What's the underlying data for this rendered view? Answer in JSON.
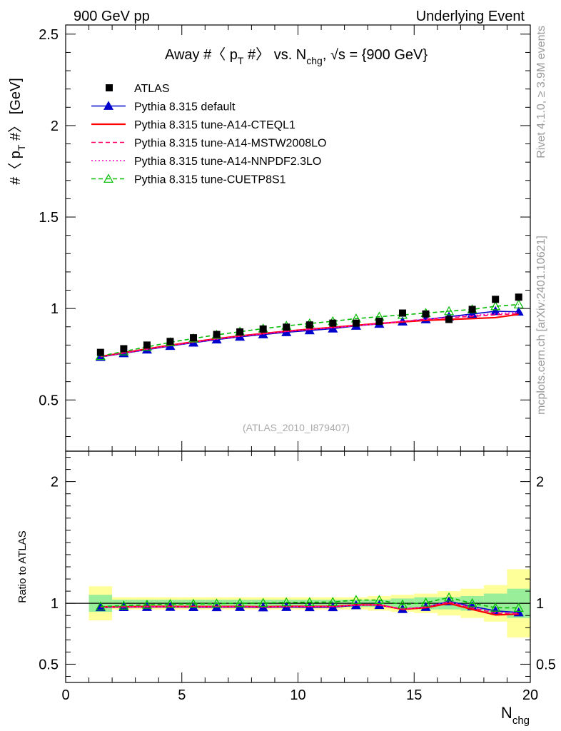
{
  "header": {
    "left": "900 GeV pp",
    "right": "Underlying Event"
  },
  "side_labels": {
    "rivet": "Rivet 4.1.0, ≥ 3.9M events",
    "mcplots": "mcplots.cern.ch [arXiv:2401.10621]"
  },
  "chart_data": {
    "type": "line",
    "title": "Away #〈 p_T #〉 vs. N_chg, √s = {900 GeV}",
    "watermark": "(ATLAS_2010_I879407)",
    "xlabel": "N_chg",
    "ylabel": "#〈 p_T #〉 [GeV]",
    "ratio_ylabel": "Ratio to ATLAS",
    "xlim": [
      0,
      20
    ],
    "ylim": [
      0.22,
      2.55
    ],
    "ratio_ylim": [
      0.35,
      2.25
    ],
    "x_ticks": [
      "0",
      "5",
      "10",
      "15",
      "20"
    ],
    "y_ticks": [
      "0.5",
      "1",
      "1.5",
      "2",
      "2.5"
    ],
    "ratio_ticks": [
      "0.5",
      "1",
      "2"
    ],
    "x": [
      1.5,
      2.5,
      3.5,
      4.5,
      5.5,
      6.5,
      7.5,
      8.5,
      9.5,
      10.5,
      11.5,
      12.5,
      13.5,
      14.5,
      15.5,
      16.5,
      17.5,
      18.5,
      19.5
    ],
    "data": {
      "name": "ATLAS",
      "values": [
        0.76,
        0.78,
        0.8,
        0.82,
        0.84,
        0.858,
        0.872,
        0.888,
        0.898,
        0.91,
        0.92,
        0.92,
        0.93,
        0.975,
        0.97,
        0.94,
        0.995,
        1.05,
        1.062
      ],
      "band_inner": [
        0.07,
        0.03,
        0.03,
        0.03,
        0.03,
        0.03,
        0.03,
        0.03,
        0.03,
        0.03,
        0.03,
        0.03,
        0.03,
        0.04,
        0.05,
        0.05,
        0.06,
        0.08,
        0.12
      ],
      "band_outer": [
        0.14,
        0.05,
        0.05,
        0.05,
        0.05,
        0.05,
        0.05,
        0.05,
        0.05,
        0.05,
        0.05,
        0.05,
        0.06,
        0.07,
        0.08,
        0.1,
        0.12,
        0.15,
        0.28
      ]
    },
    "series": [
      {
        "name": "Pythia 8.315 default",
        "color": "#0000cc",
        "dash": "solid",
        "marker": "triangle-filled",
        "values": [
          0.735,
          0.755,
          0.775,
          0.795,
          0.813,
          0.83,
          0.845,
          0.858,
          0.87,
          0.88,
          0.89,
          0.905,
          0.916,
          0.928,
          0.94,
          0.955,
          0.97,
          0.985,
          0.982
        ]
      },
      {
        "name": "Pythia 8.315 tune-A14-CTEQL1",
        "color": "#ff0000",
        "dash": "solid",
        "marker": "none",
        "values": [
          0.738,
          0.758,
          0.779,
          0.799,
          0.818,
          0.835,
          0.85,
          0.863,
          0.876,
          0.887,
          0.897,
          0.908,
          0.918,
          0.927,
          0.935,
          0.94,
          0.945,
          0.95,
          0.968
        ]
      },
      {
        "name": "Pythia 8.315 tune-A14-MSTW2008LO",
        "color": "#ff0066",
        "dash": "dashed",
        "marker": "none",
        "values": [
          0.737,
          0.757,
          0.778,
          0.798,
          0.816,
          0.834,
          0.849,
          0.862,
          0.875,
          0.886,
          0.896,
          0.907,
          0.918,
          0.93,
          0.942,
          0.95,
          0.957,
          0.965,
          0.972
        ]
      },
      {
        "name": "Pythia 8.315 tune-A14-NNPDF2.3LO",
        "color": "#ff00cc",
        "dash": "dotted",
        "marker": "none",
        "values": [
          0.736,
          0.756,
          0.777,
          0.797,
          0.815,
          0.833,
          0.848,
          0.861,
          0.874,
          0.885,
          0.895,
          0.906,
          0.917,
          0.93,
          0.94,
          0.952,
          0.962,
          0.972,
          0.978
        ]
      },
      {
        "name": "Pythia 8.315 tune-CUETP8S1",
        "color": "#00bb00",
        "dash": "dashed",
        "marker": "triangle-open",
        "values": [
          0.74,
          0.765,
          0.79,
          0.815,
          0.836,
          0.856,
          0.873,
          0.89,
          0.905,
          0.918,
          0.93,
          0.945,
          0.955,
          0.965,
          0.975,
          0.985,
          0.995,
          1.012,
          1.022
        ]
      }
    ]
  }
}
